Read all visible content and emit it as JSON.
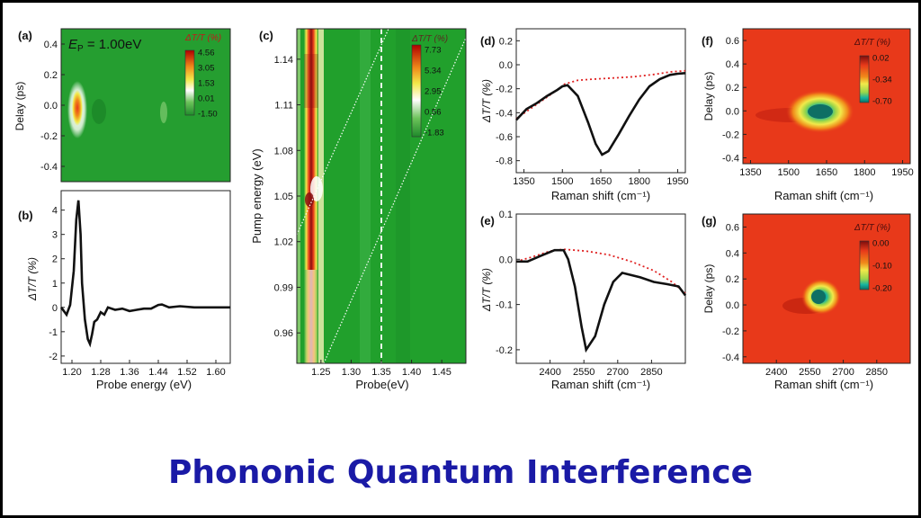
{
  "footer": {
    "title": "Phononic Quantum Interference"
  },
  "colors": {
    "green": "#1f9a2b",
    "heat_red": "#e8391a",
    "dark_red": "#7a0d0d",
    "yellow": "#f2e94a",
    "teal": "#11a18e",
    "line_black": "#111111",
    "dotted_red": "#e02222",
    "footer_blue": "#1a1aa6"
  },
  "chart_data": [
    {
      "panel": "(a)",
      "type": "heatmap",
      "annotation": {
        "label": "E",
        "subscript": "P",
        "text": " = 1.00eV"
      },
      "ylabel": "Delay (ps)",
      "ylim": [
        -0.5,
        0.5
      ],
      "yticks": [
        "0.4",
        "0.2",
        "0.0",
        "-0.2",
        "-0.4"
      ],
      "colorbar": {
        "label": "ΔT/T (%)",
        "ticks": [
          "4.56",
          "3.05",
          "1.53",
          "0.01",
          "-1.50"
        ]
      }
    },
    {
      "panel": "(b)",
      "type": "line",
      "xlabel": "Probe energy (eV)",
      "ylabel": "ΔT/T (%)",
      "xlim": [
        1.17,
        1.64
      ],
      "ylim": [
        -2.3,
        4.8
      ],
      "xticks": [
        "1.20",
        "1.28",
        "1.36",
        "1.44",
        "1.52",
        "1.60"
      ],
      "yticks": [
        "4",
        "3",
        "2",
        "1",
        "0",
        "-1",
        "-2"
      ],
      "series": [
        {
          "x": [
            1.17,
            1.185,
            1.195,
            1.205,
            1.212,
            1.218,
            1.224,
            1.228,
            1.236,
            1.244,
            1.25,
            1.256,
            1.262,
            1.27,
            1.28,
            1.29,
            1.3,
            1.32,
            1.34,
            1.36,
            1.38,
            1.4,
            1.42,
            1.44,
            1.45,
            1.47,
            1.5,
            1.54,
            1.58,
            1.62,
            1.64
          ],
          "y": [
            0.0,
            -0.3,
            0.1,
            1.5,
            3.6,
            4.4,
            3.0,
            1.0,
            -0.5,
            -1.3,
            -1.5,
            -1.1,
            -0.6,
            -0.5,
            -0.2,
            -0.3,
            0.0,
            -0.1,
            -0.05,
            -0.15,
            -0.1,
            -0.05,
            -0.05,
            0.1,
            0.12,
            0.0,
            0.05,
            0.0,
            0.0,
            0.0,
            0.0
          ]
        }
      ]
    },
    {
      "panel": "(c)",
      "type": "heatmap",
      "xlabel": "Probe(eV)",
      "ylabel": "Pump energy (eV)",
      "xlim": [
        1.21,
        1.49
      ],
      "ylim": [
        0.94,
        1.16
      ],
      "xticks": [
        "1.25",
        "1.30",
        "1.35",
        "1.40",
        "1.45"
      ],
      "yticks": [
        "1.14",
        "1.11",
        "1.08",
        "1.05",
        "1.02",
        "0.99",
        "0.96"
      ],
      "vline_x": 1.35,
      "colorbar": {
        "label": "ΔT/T (%)",
        "ticks": [
          "7.73",
          "5.34",
          "2.95",
          "0.56",
          "-1.83"
        ]
      }
    },
    {
      "panel": "(d)",
      "type": "line",
      "xlabel": "Raman shift (cm⁻¹)",
      "ylabel": "ΔT/T (%)",
      "xlim": [
        1320,
        1980
      ],
      "ylim": [
        -0.9,
        0.3
      ],
      "xticks": [
        "1350",
        "1500",
        "1650",
        "1800",
        "1950"
      ],
      "yticks": [
        "0.2",
        "0.0",
        "-0.2",
        "-0.4",
        "-0.6",
        "-0.8"
      ],
      "series": [
        {
          "style": "solid",
          "x": [
            1320,
            1360,
            1400,
            1440,
            1480,
            1500,
            1520,
            1560,
            1600,
            1630,
            1655,
            1680,
            1720,
            1760,
            1800,
            1840,
            1880,
            1920,
            1950,
            1980
          ],
          "y": [
            -0.46,
            -0.37,
            -0.32,
            -0.26,
            -0.21,
            -0.18,
            -0.17,
            -0.26,
            -0.48,
            -0.66,
            -0.75,
            -0.72,
            -0.58,
            -0.43,
            -0.29,
            -0.18,
            -0.12,
            -0.085,
            -0.075,
            -0.07
          ]
        },
        {
          "style": "dotted",
          "x": [
            1320,
            1400,
            1480,
            1510,
            1560,
            1620,
            1700,
            1780,
            1860,
            1920,
            1980
          ],
          "y": [
            -0.45,
            -0.33,
            -0.21,
            -0.16,
            -0.13,
            -0.12,
            -0.11,
            -0.1,
            -0.08,
            -0.06,
            -0.05
          ]
        }
      ]
    },
    {
      "panel": "(e)",
      "type": "line",
      "xlabel": "Raman shift (cm⁻¹)",
      "ylabel": "ΔT/T (%)",
      "xlim": [
        2250,
        3000
      ],
      "ylim": [
        -0.23,
        0.1
      ],
      "xticks": [
        "2400",
        "2550",
        "2700",
        "2850"
      ],
      "yticks": [
        "0.1",
        "0.0",
        "-0.1",
        "-0.2"
      ],
      "series": [
        {
          "style": "solid",
          "x": [
            2250,
            2300,
            2360,
            2420,
            2460,
            2480,
            2510,
            2540,
            2560,
            2580,
            2600,
            2640,
            2680,
            2700,
            2720,
            2760,
            2800,
            2860,
            2920,
            2970,
            3000
          ],
          "y": [
            -0.005,
            -0.005,
            0.008,
            0.02,
            0.02,
            0.0,
            -0.06,
            -0.15,
            -0.2,
            -0.185,
            -0.17,
            -0.1,
            -0.05,
            -0.04,
            -0.03,
            -0.035,
            -0.04,
            -0.05,
            -0.055,
            -0.06,
            -0.08
          ]
        },
        {
          "style": "dotted",
          "x": [
            2250,
            2320,
            2400,
            2460,
            2560,
            2660,
            2760,
            2860,
            2940,
            3000
          ],
          "y": [
            -0.005,
            0.005,
            0.018,
            0.022,
            0.018,
            0.01,
            -0.005,
            -0.025,
            -0.05,
            -0.075
          ]
        }
      ]
    },
    {
      "panel": "(f)",
      "type": "heatmap",
      "xlabel": "Raman shift (cm⁻¹)",
      "ylabel": "Delay (ps)",
      "xlim": [
        1320,
        1980
      ],
      "ylim": [
        -0.45,
        0.7
      ],
      "xticks": [
        "1350",
        "1500",
        "1650",
        "1800",
        "1950"
      ],
      "yticks": [
        "0.6",
        "0.4",
        "0.2",
        "0.0",
        "-0.2",
        "-0.4"
      ],
      "colorbar": {
        "label": "ΔT/T (%)",
        "ticks": [
          "0.02",
          "-0.34",
          "-0.70"
        ]
      }
    },
    {
      "panel": "(g)",
      "type": "heatmap",
      "xlabel": "Raman shift (cm⁻¹)",
      "ylabel": "Delay (ps)",
      "xlim": [
        2250,
        3000
      ],
      "ylim": [
        -0.45,
        0.7
      ],
      "xticks": [
        "2400",
        "2550",
        "2700",
        "2850"
      ],
      "yticks": [
        "0.6",
        "0.4",
        "0.2",
        "0.0",
        "-0.2",
        "-0.4"
      ],
      "colorbar": {
        "label": "ΔT/T (%)",
        "ticks": [
          "0.00",
          "-0.10",
          "-0.20"
        ]
      }
    }
  ]
}
